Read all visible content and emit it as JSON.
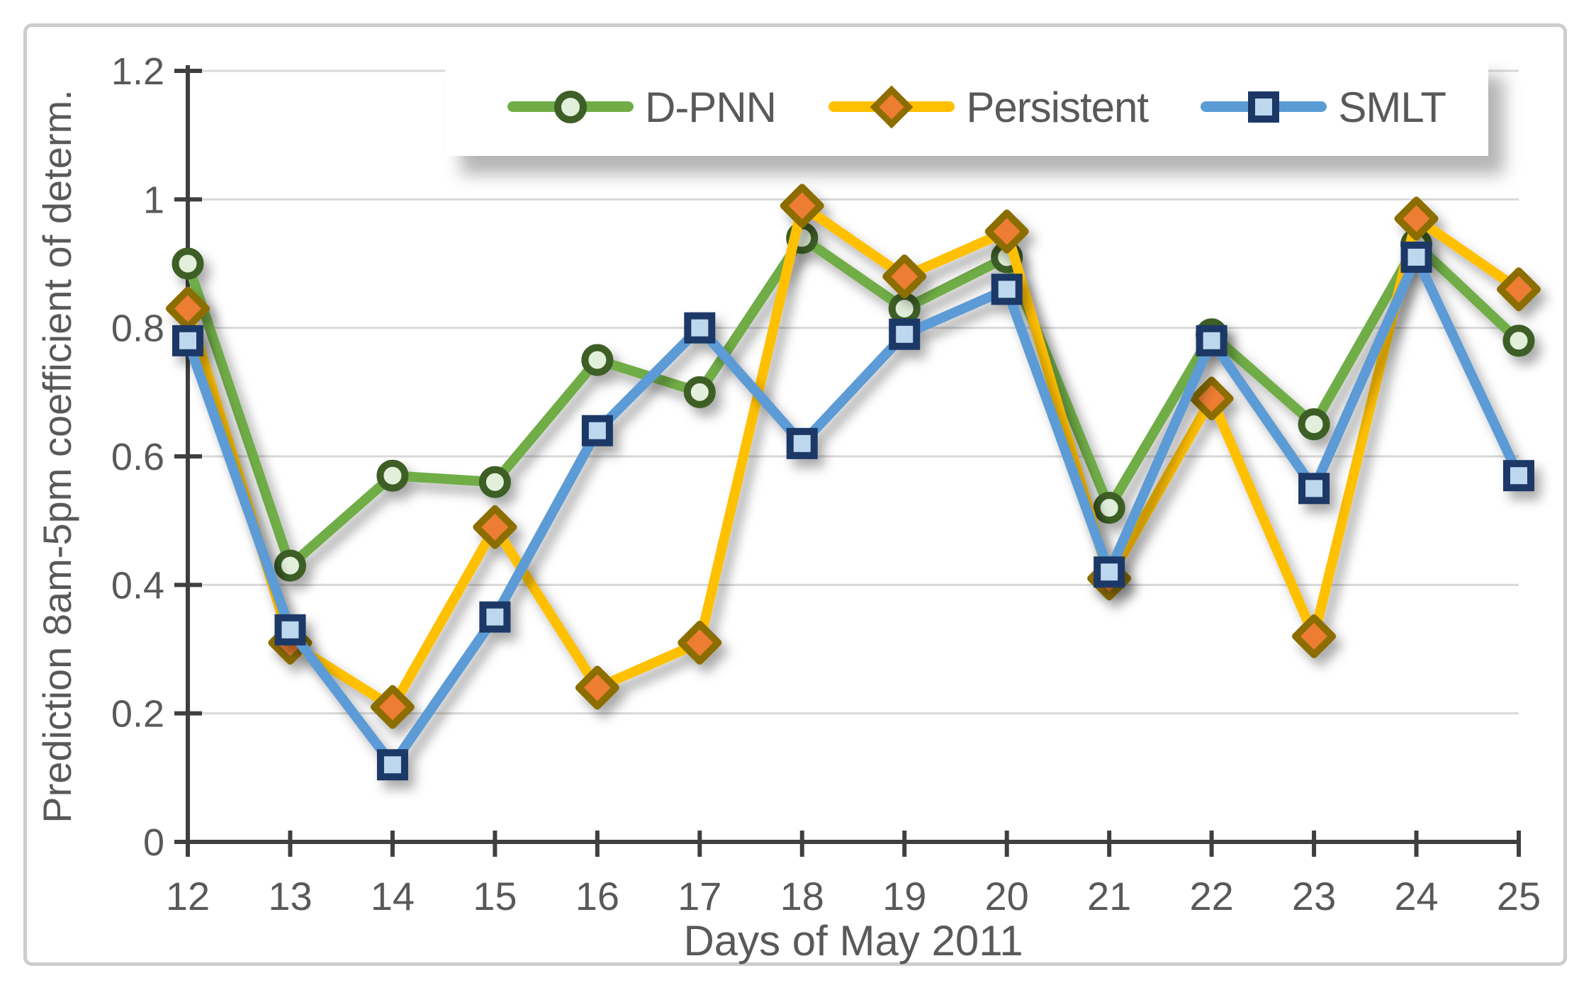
{
  "chart_data": {
    "type": "line",
    "xlabel": "Days of May 2011",
    "ylabel": "Prediction 8am-5pm coefficient of determ.",
    "x": [
      12,
      13,
      14,
      15,
      16,
      17,
      18,
      19,
      20,
      21,
      22,
      23,
      24,
      25
    ],
    "x_tick_labels": [
      "12",
      "13",
      "14",
      "15",
      "16",
      "17",
      "18",
      "19",
      "20",
      "21",
      "22",
      "23",
      "24",
      "25"
    ],
    "y_ticks": [
      0,
      0.2,
      0.4,
      0.6,
      0.8,
      1,
      1.2
    ],
    "y_tick_labels": [
      "0",
      "0.2",
      "0.4",
      "0.6",
      "0.8",
      "1",
      "1.2"
    ],
    "ylim": [
      0,
      1.2
    ],
    "grid": "horizontal",
    "legend_position": "top",
    "series": [
      {
        "name": "D-PNN",
        "marker": "circle",
        "line_color": "#70AD47",
        "marker_fill": "#E2EFDA",
        "marker_border": "#3E5F27",
        "values": [
          0.9,
          0.43,
          0.57,
          0.56,
          0.75,
          0.7,
          0.94,
          0.83,
          0.91,
          0.52,
          0.79,
          0.65,
          0.93,
          0.78
        ]
      },
      {
        "name": "Persistent",
        "marker": "diamond",
        "line_color": "#FFC000",
        "marker_fill": "#ED7D31",
        "marker_border": "#8C6D00",
        "values": [
          0.83,
          0.31,
          0.21,
          0.49,
          0.24,
          0.31,
          0.99,
          0.88,
          0.95,
          0.41,
          0.69,
          0.32,
          0.97,
          0.86
        ]
      },
      {
        "name": "SMLT",
        "marker": "square",
        "line_color": "#5B9BD5",
        "marker_fill": "#BDD7EE",
        "marker_border": "#1A3766",
        "values": [
          0.78,
          0.33,
          0.12,
          0.35,
          0.64,
          0.8,
          0.62,
          0.79,
          0.86,
          0.42,
          0.78,
          0.55,
          0.91,
          0.57
        ]
      }
    ],
    "colors": {
      "gridline": "#D9D9D9",
      "axis_line": "#3F3F3F",
      "tick_label": "#595959",
      "axis_title": "#595959",
      "legend_text": "#595959",
      "background": "#FFFFFF"
    }
  }
}
